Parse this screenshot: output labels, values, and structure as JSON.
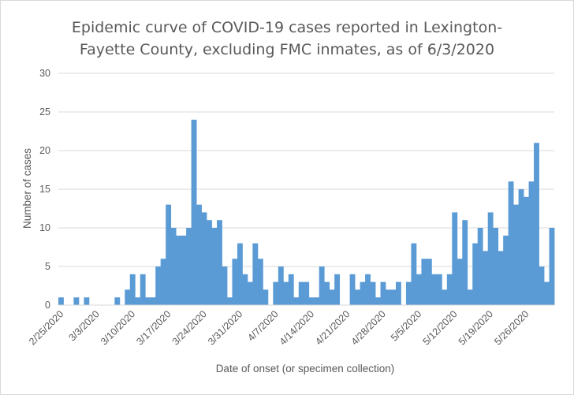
{
  "chart_data": {
    "type": "bar",
    "title_lines": [
      "Epidemic curve of COVID-19 cases reported in Lexington-",
      "Fayette County, excluding FMC inmates, as of 6/3/2020"
    ],
    "xlabel": "Date of onset (or specimen collection)",
    "ylabel": "Number of cases",
    "ylim": [
      0,
      30
    ],
    "yticks": [
      0,
      5,
      10,
      15,
      20,
      25,
      30
    ],
    "grid": true,
    "start_date": "2/25/2020",
    "x_tick_labels": [
      "2/25/2020",
      "3/3/2020",
      "3/10/2020",
      "3/17/2020",
      "3/24/2020",
      "3/31/2020",
      "4/7/2020",
      "4/14/2020",
      "4/21/2020",
      "4/28/2020",
      "5/5/2020",
      "5/12/2020",
      "5/19/2020",
      "5/26/2020"
    ],
    "color": "#5b9bd5",
    "values": [
      1,
      0,
      0,
      1,
      0,
      1,
      0,
      0,
      0,
      0,
      0,
      1,
      0,
      2,
      4,
      1,
      4,
      1,
      1,
      5,
      6,
      13,
      10,
      9,
      9,
      10,
      24,
      13,
      12,
      11,
      10,
      11,
      5,
      1,
      6,
      8,
      4,
      3,
      8,
      6,
      2,
      0,
      3,
      5,
      3,
      4,
      1,
      3,
      3,
      1,
      1,
      5,
      3,
      2,
      4,
      0,
      0,
      4,
      2,
      3,
      4,
      3,
      1,
      3,
      2,
      2,
      3,
      0,
      3,
      8,
      4,
      6,
      6,
      4,
      4,
      2,
      4,
      12,
      6,
      11,
      2,
      8,
      10,
      7,
      12,
      10,
      7,
      9,
      16,
      13,
      15,
      14,
      16,
      21,
      5,
      3,
      10
    ]
  }
}
